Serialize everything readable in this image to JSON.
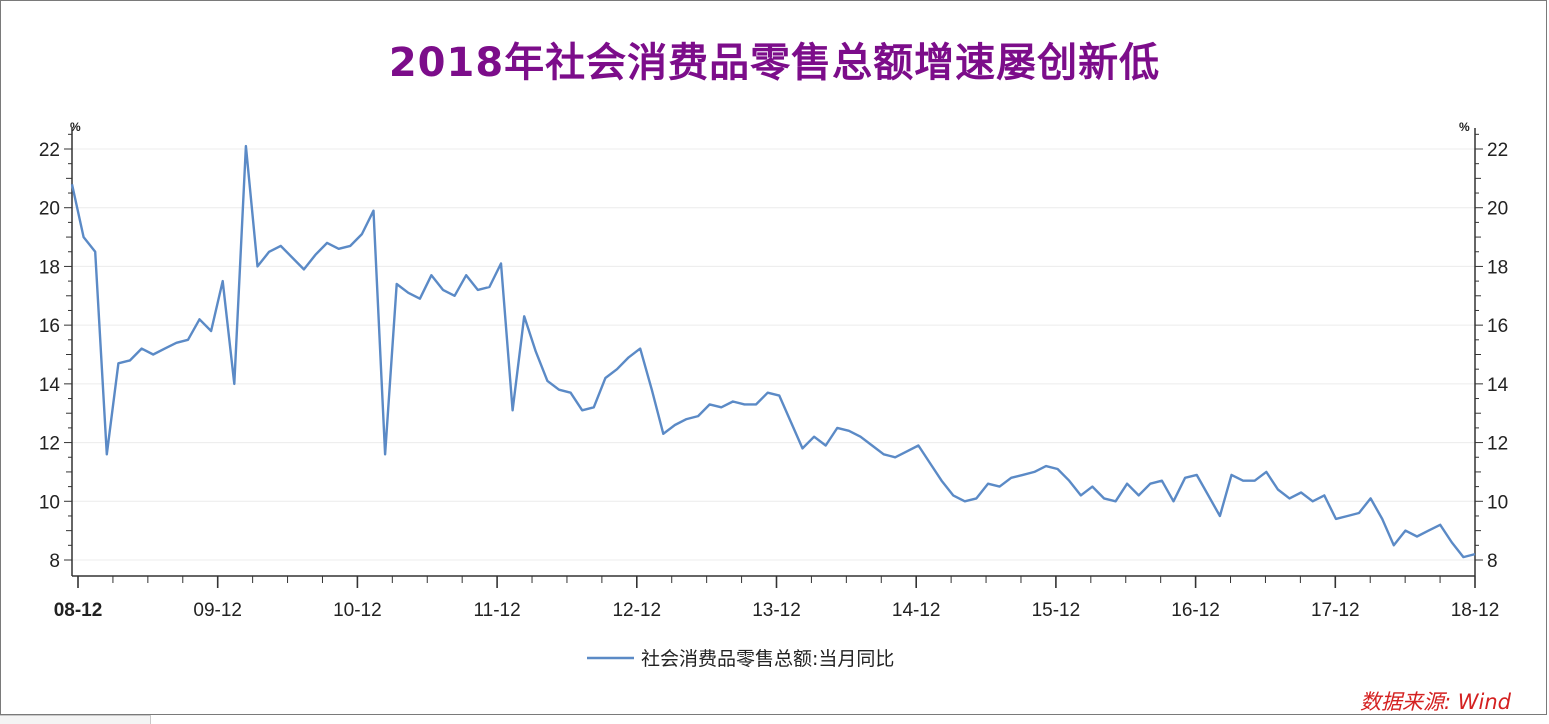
{
  "title": "2018年社会消费品零售总额增速屡创新低",
  "source_label": "数据来源:  Wind",
  "colors": {
    "title": "#7c0d8a",
    "line": "#5b8ac6",
    "source": "#d42020",
    "grid": "#ececec",
    "axis": "#333333"
  },
  "chart_data": {
    "type": "line",
    "title": "2018年社会消费品零售总额增速屡创新低",
    "y_unit_left": "%",
    "y_unit_right": "%",
    "ylim": [
      7.5,
      23
    ],
    "yticks": [
      8,
      10,
      12,
      14,
      16,
      18,
      20,
      22
    ],
    "x_tick_labels": [
      "08-12",
      "09-12",
      "10-12",
      "11-12",
      "12-12",
      "13-12",
      "14-12",
      "15-12",
      "16-12",
      "17-12",
      "18-12"
    ],
    "grid": true,
    "legend_position": "bottom-center",
    "series": [
      {
        "name": "社会消费品零售总额:当月同比",
        "color": "#5b8ac6",
        "values": [
          20.8,
          19.0,
          18.5,
          11.6,
          14.7,
          14.8,
          15.2,
          15.0,
          15.2,
          15.4,
          15.5,
          16.2,
          15.8,
          17.5,
          14.0,
          22.1,
          18.0,
          18.5,
          18.7,
          18.3,
          17.9,
          18.4,
          18.8,
          18.6,
          18.7,
          19.1,
          19.9,
          11.6,
          17.4,
          17.1,
          16.9,
          17.7,
          17.2,
          17.0,
          17.7,
          17.2,
          17.3,
          18.1,
          13.1,
          16.3,
          15.1,
          14.1,
          13.8,
          13.7,
          13.1,
          13.2,
          14.2,
          14.5,
          14.9,
          15.2,
          13.8,
          12.3,
          12.6,
          12.8,
          12.9,
          13.3,
          13.2,
          13.4,
          13.3,
          13.3,
          13.7,
          13.6,
          12.7,
          11.8,
          12.2,
          11.9,
          12.5,
          12.4,
          12.2,
          11.9,
          11.6,
          11.5,
          11.7,
          11.9,
          11.3,
          10.7,
          10.2,
          10.0,
          10.1,
          10.6,
          10.5,
          10.8,
          10.9,
          11.0,
          11.2,
          11.1,
          10.7,
          10.2,
          10.5,
          10.1,
          10.0,
          10.6,
          10.2,
          10.6,
          10.7,
          10.0,
          10.8,
          10.9,
          10.2,
          9.5,
          10.9,
          10.7,
          10.7,
          11.0,
          10.4,
          10.1,
          10.3,
          10.0,
          10.2,
          9.4,
          9.5,
          9.6,
          10.1,
          9.4,
          8.5,
          9.0,
          8.8,
          9.0,
          9.2,
          8.6,
          8.1,
          8.2
        ]
      }
    ]
  }
}
